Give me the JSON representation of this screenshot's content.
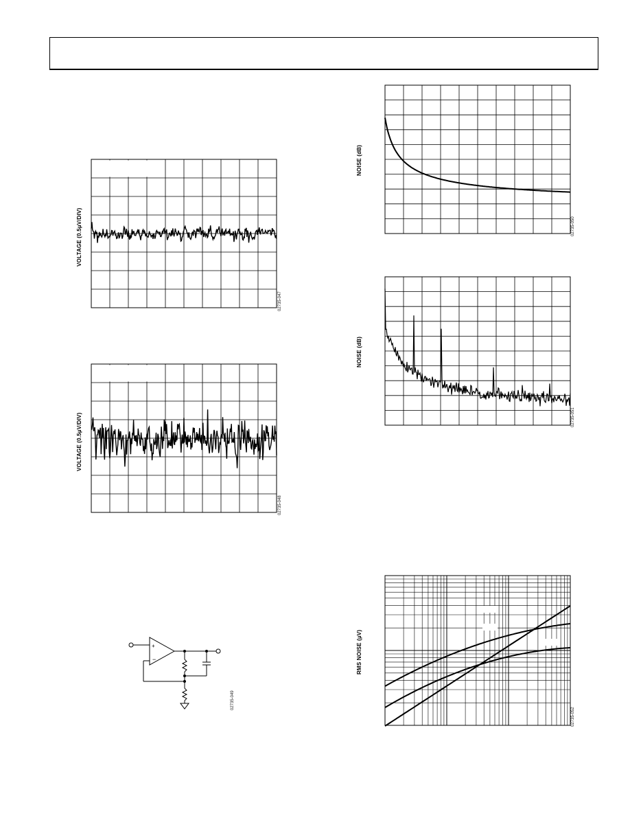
{
  "figures": {
    "fig1": {
      "ylabel": "VOLTAGE (0.5µV/DIV)",
      "code": "02735-047"
    },
    "fig2": {
      "ylabel": "VOLTAGE (0.5µV/DIV)",
      "code": "02735-048"
    },
    "fig3": {
      "ylabel": "NOISE (dB)",
      "code": "02735-050"
    },
    "fig4": {
      "ylabel": "NOISE (dB)",
      "code": "02735-051"
    },
    "fig5": {
      "code": "02735-049"
    },
    "fig6": {
      "ylabel": "RMS NOISE (µV)",
      "code": "02735-052"
    }
  },
  "chart_data": [
    {
      "type": "line",
      "title": "",
      "xlabel": "",
      "ylabel": "VOLTAGE (0.5µV/DIV)",
      "grid": true,
      "divisions": {
        "x": 10,
        "y": 8
      },
      "series": [
        {
          "values": "noise trace centered at 4 divisions from top, approx ±0.5 div amplitude"
        }
      ]
    },
    {
      "type": "line",
      "title": "",
      "xlabel": "",
      "ylabel": "VOLTAGE (0.5µV/DIV)",
      "grid": true,
      "divisions": {
        "x": 10,
        "y": 8
      },
      "series": [
        {
          "values": "noise trace centered at 4 divisions from top, approx ±1.5 div peak amplitude"
        }
      ]
    },
    {
      "type": "line",
      "title": "",
      "xlabel": "",
      "ylabel": "NOISE (dB)",
      "grid": true,
      "divisions": {
        "x": 10,
        "y": 10
      },
      "series": [
        {
          "values": "smooth decreasing curve from 7.8 div to 1.9 div above bottom"
        }
      ]
    },
    {
      "type": "line",
      "title": "",
      "xlabel": "",
      "ylabel": "NOISE (dB)",
      "grid": true,
      "divisions": {
        "x": 10,
        "y": 10
      },
      "series": [
        {
          "values": "noisy decreasing spectrum from ~6.8 div to ~1.2 div above bottom with spurs"
        }
      ]
    },
    {
      "type": "line",
      "title": "",
      "xlabel": "",
      "ylabel": "RMS NOISE (µV)",
      "grid": true,
      "xscale": "log",
      "yscale": "log",
      "series": [
        {
          "values": "upper curve, rising, flattening at right"
        },
        {
          "values": "middle curve, rising, flattening at right"
        },
        {
          "values": "lower straight rising line"
        }
      ]
    }
  ]
}
